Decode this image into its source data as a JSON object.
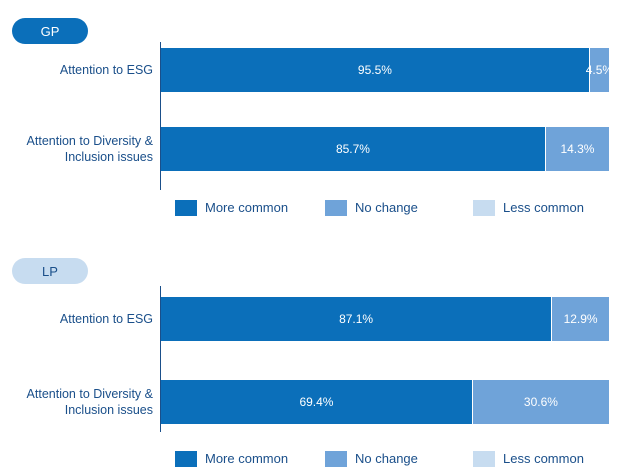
{
  "chart_data": [
    {
      "type": "stacked-bar-horizontal",
      "title": "GP",
      "categories": [
        "Attention to ESG",
        "Attention to Diversity & Inclusion issues"
      ],
      "xlim": [
        0,
        100
      ],
      "series": [
        {
          "name": "More common",
          "color": "#0b6fba",
          "values": [
            95.5,
            85.7
          ],
          "value_labels": [
            "95.5%",
            "85.7%"
          ]
        },
        {
          "name": "No change",
          "color": "#6fa3d9",
          "values": [
            4.5,
            14.3
          ],
          "value_labels": [
            "4.5%",
            "14.3%"
          ]
        },
        {
          "name": "Less common",
          "color": "#c7dcf0",
          "values": [
            0,
            0
          ],
          "value_labels": [
            null,
            null
          ]
        }
      ]
    },
    {
      "type": "stacked-bar-horizontal",
      "title": "LP",
      "categories": [
        "Attention to ESG",
        "Attention to Diversity & Inclusion issues"
      ],
      "xlim": [
        0,
        100
      ],
      "series": [
        {
          "name": "More common",
          "color": "#0b6fba",
          "values": [
            87.1,
            69.4
          ],
          "value_labels": [
            "87.1%",
            "69.4%"
          ]
        },
        {
          "name": "No change",
          "color": "#6fa3d9",
          "values": [
            12.9,
            30.6
          ],
          "value_labels": [
            "12.9%",
            "30.6%"
          ]
        },
        {
          "name": "Less common",
          "color": "#c7dcf0",
          "values": [
            0,
            0
          ],
          "value_labels": [
            null,
            null
          ]
        }
      ]
    }
  ]
}
